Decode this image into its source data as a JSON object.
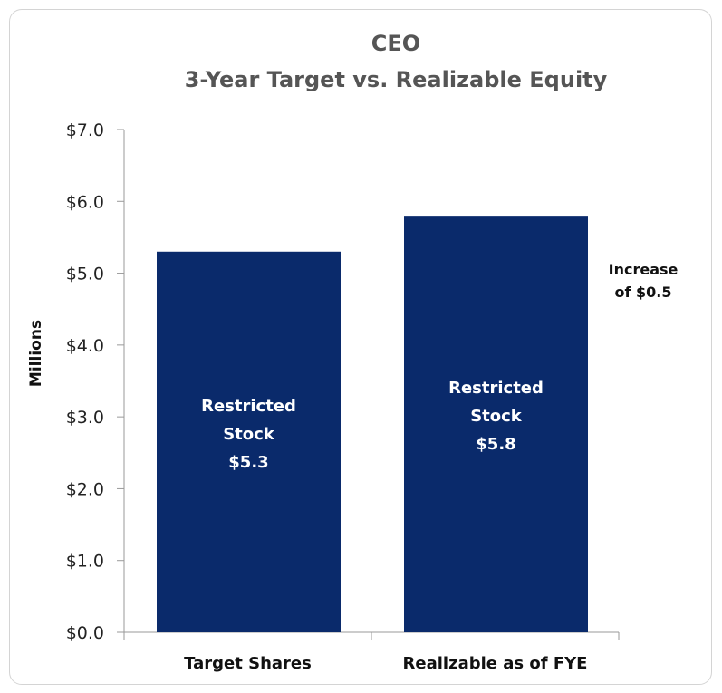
{
  "chart_data": {
    "type": "bar",
    "title": [
      "CEO",
      "3-Year Target vs. Realizable Equity"
    ],
    "ylabel": "Millions",
    "xlabel": "",
    "ylim": [
      0,
      7
    ],
    "yticks": [
      "$0.0",
      "$1.0",
      "$2.0",
      "$3.0",
      "$4.0",
      "$5.0",
      "$6.0",
      "$7.0"
    ],
    "categories": [
      "Target Shares",
      "Realizable as of FYE"
    ],
    "values": [
      5.3,
      5.8
    ],
    "data_labels": [
      [
        "Restricted",
        "Stock",
        "$5.3"
      ],
      [
        "Restricted",
        "Stock",
        "$5.8"
      ]
    ],
    "annotation": [
      "Increase",
      "of $0.5"
    ],
    "bar_color": "#0a2a6b",
    "grid": false,
    "legend": "none"
  }
}
